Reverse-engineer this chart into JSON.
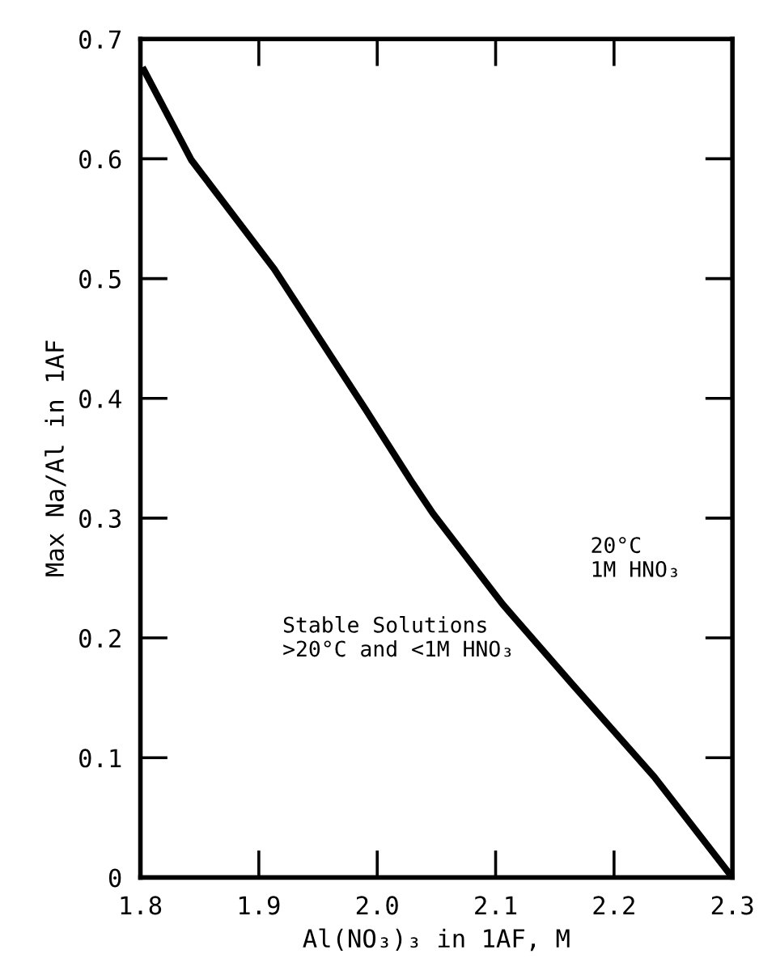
{
  "chart_data": {
    "type": "line",
    "xlabel": "Al(NO₃)₃ in 1AF, M",
    "ylabel": "Max Na/Al in 1AF",
    "x": [
      1.803,
      1.843,
      1.913,
      1.99,
      2.03,
      2.047,
      2.106,
      2.165,
      2.234,
      2.3
    ],
    "series": [
      {
        "color": "#000000",
        "values": [
          0.674,
          0.599,
          0.508,
          0.391,
          0.329,
          0.304,
          0.228,
          0.161,
          0.084,
          0.0
        ]
      }
    ],
    "xlim": [
      1.8,
      2.3
    ],
    "ylim": [
      0,
      0.7
    ],
    "xticks": [
      1.8,
      1.9,
      {
        "value": 2.0,
        "label": "2.0"
      },
      2.1,
      2.2,
      2.3
    ],
    "yticks": [
      0,
      0.1,
      0.2,
      0.3,
      0.4,
      0.5,
      0.6,
      0.7
    ],
    "annotations": [
      "20°C\n1M HNO₃",
      "Stable Solutions\n>20°C and <1M HNO₃"
    ],
    "grid": false,
    "legend": false,
    "marker": "none",
    "line_style": "solid"
  }
}
